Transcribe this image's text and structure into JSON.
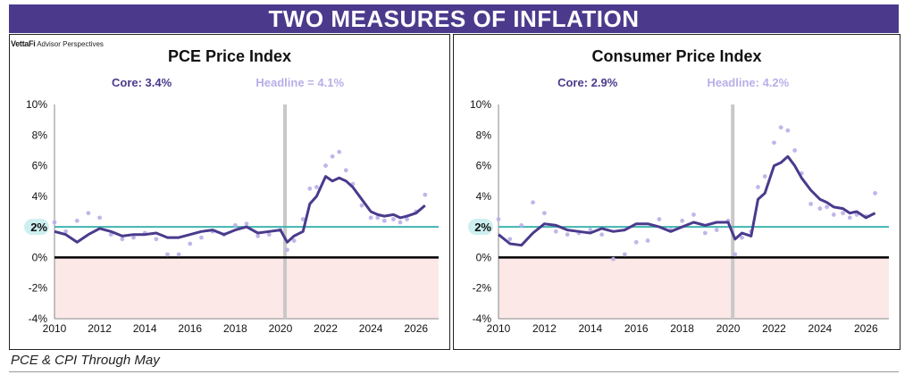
{
  "banner_title": "TWO MEASURES OF INFLATION",
  "logo": {
    "brand": "VettaFi",
    "sub": "Advisor Perspectives"
  },
  "footer_note": "PCE & CPI Through May",
  "colors": {
    "banner": "#4b3a8c",
    "core": "#4b3a8c",
    "headline": "#b9aee8",
    "target": "#3fb5b0",
    "negative_zone": "#fde8e8",
    "recession": "#c8c8c8"
  },
  "chart_data": [
    {
      "type": "line",
      "title": "PCE Price Index",
      "core_label": "Core: 3.4%",
      "headline_label": "Headline = 4.1%",
      "ylim": [
        -4,
        10
      ],
      "yticks": [
        "10%",
        "8%",
        "6%",
        "4%",
        "2%",
        "0%",
        "-2%",
        "-4%"
      ],
      "xticks": [
        "2010",
        "2012",
        "2014",
        "2016",
        "2018",
        "2020",
        "2022",
        "2024",
        "2026"
      ],
      "xlim": [
        2010,
        2027
      ],
      "target_label": "2%",
      "target_value": 2,
      "recession_x": 2020.2,
      "series": [
        {
          "style": "core",
          "x": [
            2010,
            2010.5,
            2011,
            2011.5,
            2012,
            2012.5,
            2013,
            2013.5,
            2014,
            2014.5,
            2015,
            2015.5,
            2016,
            2016.5,
            2017,
            2017.5,
            2018,
            2018.5,
            2019,
            2019.5,
            2020,
            2020.3,
            2020.6,
            2021,
            2021.3,
            2021.6,
            2022,
            2022.3,
            2022.6,
            2022.9,
            2023.2,
            2023.6,
            2024,
            2024.3,
            2024.6,
            2025,
            2025.3,
            2025.6,
            2026,
            2026.4
          ],
          "y": [
            1.7,
            1.5,
            1.0,
            1.5,
            1.9,
            1.7,
            1.4,
            1.5,
            1.5,
            1.6,
            1.3,
            1.3,
            1.5,
            1.7,
            1.8,
            1.5,
            1.8,
            2.0,
            1.6,
            1.7,
            1.8,
            1.0,
            1.4,
            1.7,
            3.5,
            4.0,
            5.3,
            5.0,
            5.2,
            5.0,
            4.6,
            3.8,
            3.0,
            2.8,
            2.7,
            2.8,
            2.6,
            2.7,
            2.9,
            3.4
          ]
        },
        {
          "style": "headline",
          "x": [
            2010,
            2010.5,
            2011,
            2011.5,
            2012,
            2012.5,
            2013,
            2013.5,
            2014,
            2014.5,
            2015,
            2015.5,
            2016,
            2016.5,
            2017,
            2017.5,
            2018,
            2018.5,
            2019,
            2019.5,
            2020,
            2020.3,
            2020.6,
            2021,
            2021.3,
            2021.6,
            2022,
            2022.3,
            2022.6,
            2022.9,
            2023.2,
            2023.6,
            2024,
            2024.3,
            2024.6,
            2025,
            2025.3,
            2025.6,
            2026,
            2026.4
          ],
          "y": [
            2.3,
            1.7,
            2.4,
            2.9,
            2.6,
            1.5,
            1.2,
            1.3,
            1.6,
            1.2,
            0.2,
            0.2,
            0.9,
            1.3,
            1.7,
            1.5,
            2.1,
            2.2,
            1.4,
            1.5,
            1.8,
            0.5,
            1.1,
            2.5,
            4.5,
            4.6,
            6.0,
            6.6,
            6.9,
            5.7,
            4.8,
            3.4,
            2.6,
            2.6,
            2.4,
            2.5,
            2.3,
            2.5,
            3.0,
            4.1
          ]
        }
      ]
    },
    {
      "type": "line",
      "title": "Consumer Price Index",
      "core_label": "Core: 2.9%",
      "headline_label": "Headline: 4.2%",
      "ylim": [
        -4,
        10
      ],
      "yticks": [
        "10%",
        "8%",
        "6%",
        "4%",
        "2%",
        "0%",
        "-2%",
        "-4%"
      ],
      "xticks": [
        "2010",
        "2012",
        "2014",
        "2016",
        "2018",
        "2020",
        "2022",
        "2024",
        "2026"
      ],
      "xlim": [
        2010,
        2027
      ],
      "target_label": "2%",
      "target_value": 2,
      "recession_x": 2020.2,
      "series": [
        {
          "style": "core",
          "x": [
            2010,
            2010.5,
            2011,
            2011.5,
            2012,
            2012.5,
            2013,
            2013.5,
            2014,
            2014.5,
            2015,
            2015.5,
            2016,
            2016.5,
            2017,
            2017.5,
            2018,
            2018.5,
            2019,
            2019.5,
            2020,
            2020.3,
            2020.6,
            2021,
            2021.3,
            2021.6,
            2022,
            2022.3,
            2022.6,
            2022.9,
            2023.2,
            2023.6,
            2024,
            2024.3,
            2024.6,
            2025,
            2025.3,
            2025.6,
            2026,
            2026.4
          ],
          "y": [
            1.5,
            0.9,
            0.8,
            1.6,
            2.2,
            2.1,
            1.8,
            1.7,
            1.6,
            1.9,
            1.7,
            1.8,
            2.2,
            2.2,
            2.0,
            1.7,
            2.0,
            2.3,
            2.1,
            2.3,
            2.3,
            1.2,
            1.6,
            1.4,
            3.8,
            4.2,
            6.0,
            6.2,
            6.6,
            6.0,
            5.2,
            4.4,
            3.8,
            3.6,
            3.3,
            3.2,
            2.9,
            3.0,
            2.6,
            2.9
          ]
        },
        {
          "style": "headline",
          "x": [
            2010,
            2010.5,
            2011,
            2011.5,
            2012,
            2012.5,
            2013,
            2013.5,
            2014,
            2014.5,
            2015,
            2015.5,
            2016,
            2016.5,
            2017,
            2017.5,
            2018,
            2018.5,
            2019,
            2019.5,
            2020,
            2020.3,
            2020.6,
            2021,
            2021.3,
            2021.6,
            2022,
            2022.3,
            2022.6,
            2022.9,
            2023.2,
            2023.6,
            2024,
            2024.3,
            2024.6,
            2025,
            2025.3,
            2025.6,
            2026,
            2026.4
          ],
          "y": [
            2.5,
            1.2,
            2.1,
            3.6,
            2.9,
            1.7,
            1.5,
            1.6,
            1.8,
            1.5,
            -0.1,
            0.2,
            1.0,
            1.1,
            2.5,
            1.8,
            2.4,
            2.8,
            1.6,
            1.8,
            2.4,
            0.2,
            1.3,
            1.7,
            4.6,
            5.3,
            7.5,
            8.5,
            8.3,
            7.0,
            5.5,
            3.5,
            3.2,
            3.3,
            2.8,
            2.9,
            2.6,
            2.8,
            2.7,
            4.2
          ]
        }
      ]
    }
  ]
}
